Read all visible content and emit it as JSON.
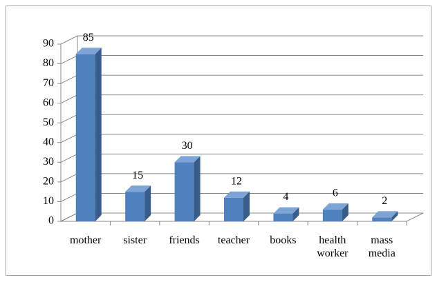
{
  "chart_data": {
    "type": "bar3d",
    "categories": [
      "mother",
      "sister",
      "friends",
      "teacher",
      "books",
      "health worker",
      "mass media"
    ],
    "values": [
      85,
      15,
      30,
      12,
      4,
      6,
      2
    ],
    "color": "#4f81bd",
    "ylim": [
      0,
      90
    ],
    "yticks": [
      0,
      10,
      20,
      30,
      40,
      50,
      60,
      70,
      80,
      90
    ],
    "grid": true
  }
}
